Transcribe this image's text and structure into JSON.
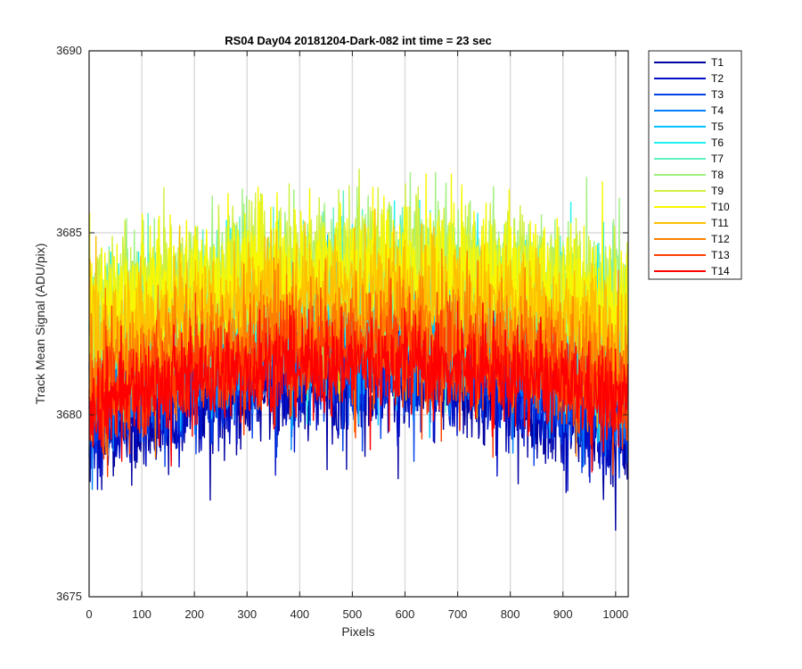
{
  "chart_data": {
    "type": "line",
    "title": "RS04 Day04 20181204-Dark-082 int time = 23 sec",
    "xlabel": "Pixels",
    "ylabel": "Track Mean Signal (ADU/pix)",
    "xlim": [
      0,
      1024
    ],
    "ylim": [
      3675,
      3690
    ],
    "xticks": [
      0,
      100,
      200,
      300,
      400,
      500,
      600,
      700,
      800,
      900,
      1000
    ],
    "yticks": [
      3675,
      3680,
      3685,
      3690
    ],
    "grid": true,
    "legend_position": "outside-top-right",
    "series": [
      {
        "name": "T1",
        "color": "#0000a0",
        "center_mean": 3680.9,
        "edge_mean": 3679.2,
        "noise_amplitude": 1.0
      },
      {
        "name": "T2",
        "color": "#0010c8",
        "center_mean": 3681.1,
        "edge_mean": 3679.6,
        "noise_amplitude": 1.0
      },
      {
        "name": "T3",
        "color": "#0040e8",
        "center_mean": 3681.4,
        "edge_mean": 3680.0,
        "noise_amplitude": 1.0
      },
      {
        "name": "T4",
        "color": "#0080ff",
        "center_mean": 3682.0,
        "edge_mean": 3680.7,
        "noise_amplitude": 1.1
      },
      {
        "name": "T5",
        "color": "#00c0ff",
        "center_mean": 3682.6,
        "edge_mean": 3681.4,
        "noise_amplitude": 1.2
      },
      {
        "name": "T6",
        "color": "#20f0f0",
        "center_mean": 3683.2,
        "edge_mean": 3682.0,
        "noise_amplitude": 1.3
      },
      {
        "name": "T7",
        "color": "#60f0c0",
        "center_mean": 3683.6,
        "edge_mean": 3682.4,
        "noise_amplitude": 1.3
      },
      {
        "name": "T8",
        "color": "#a0f080",
        "center_mean": 3684.0,
        "edge_mean": 3682.8,
        "noise_amplitude": 1.3
      },
      {
        "name": "T9",
        "color": "#d0f040",
        "center_mean": 3684.2,
        "edge_mean": 3683.0,
        "noise_amplitude": 1.3
      },
      {
        "name": "T10",
        "color": "#f8f800",
        "center_mean": 3684.0,
        "edge_mean": 3682.8,
        "noise_amplitude": 1.3
      },
      {
        "name": "T11",
        "color": "#ffc000",
        "center_mean": 3683.3,
        "edge_mean": 3682.0,
        "noise_amplitude": 1.2
      },
      {
        "name": "T12",
        "color": "#ff8000",
        "center_mean": 3682.4,
        "edge_mean": 3681.0,
        "noise_amplitude": 1.1
      },
      {
        "name": "T13",
        "color": "#ff4000",
        "center_mean": 3681.8,
        "edge_mean": 3680.4,
        "noise_amplitude": 1.0
      },
      {
        "name": "T14",
        "color": "#ff0000",
        "center_mean": 3681.4,
        "edge_mean": 3680.3,
        "noise_amplitude": 0.9
      }
    ]
  }
}
